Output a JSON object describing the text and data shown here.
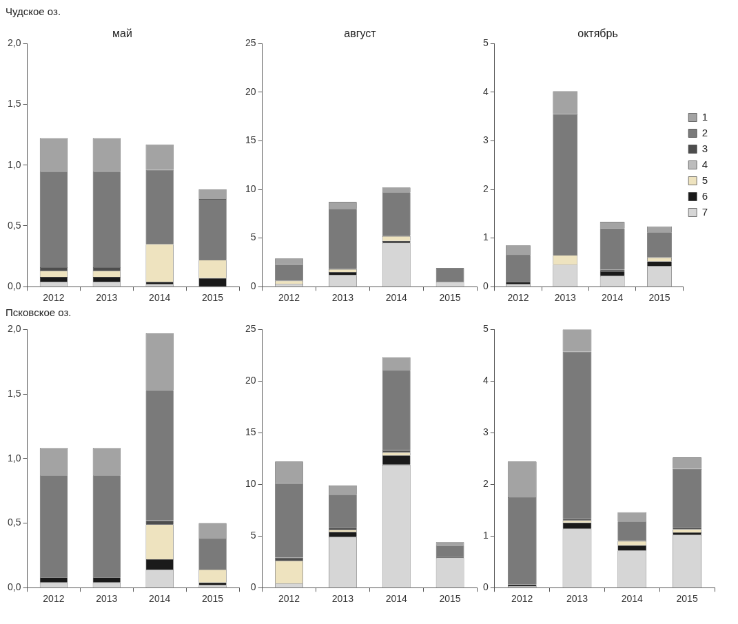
{
  "chart_data": [
    {
      "type": "bar",
      "title": "май",
      "annotations": [
        "Чудское оз."
      ],
      "categories": [
        "2012",
        "2013",
        "2014",
        "2015"
      ],
      "stacked": true,
      "grid": false,
      "legend": false,
      "ylim": [
        0,
        2
      ],
      "yticks": [
        {
          "value": 0,
          "label": "0,0"
        },
        {
          "value": 0.5,
          "label": "0,5"
        },
        {
          "value": 1,
          "label": "1,0"
        },
        {
          "value": 1.5,
          "label": "1,5"
        },
        {
          "value": 2,
          "label": "2,0"
        }
      ],
      "series": [
        {
          "color": "#d6d6d6",
          "values": [
            0.04,
            0.04,
            0.02,
            0
          ]
        },
        {
          "color": "#1a1a1a",
          "values": [
            0.04,
            0.04,
            0.02,
            0.07
          ]
        },
        {
          "color": "#eee3bf",
          "values": [
            0.05,
            0.05,
            0.31,
            0.15
          ]
        },
        {
          "color": "#bcbcbc",
          "values": [
            0,
            0,
            0,
            0
          ]
        },
        {
          "color": "#4d4d4d",
          "values": [
            0.03,
            0.03,
            0,
            0
          ]
        },
        {
          "color": "#7a7a7a",
          "values": [
            0.79,
            0.79,
            0.61,
            0.5
          ]
        },
        {
          "color": "#a3a3a3",
          "values": [
            0.27,
            0.27,
            0.21,
            0.08
          ]
        }
      ]
    },
    {
      "type": "bar",
      "title": "август",
      "categories": [
        "2012",
        "2013",
        "2014",
        "2015"
      ],
      "stacked": true,
      "grid": false,
      "legend": false,
      "ylim": [
        0,
        25
      ],
      "yticks": [
        0,
        5,
        10,
        15,
        20,
        25
      ],
      "series": [
        {
          "color": "#d6d6d6",
          "values": [
            0.3,
            1.2,
            4.5,
            0.5
          ]
        },
        {
          "color": "#1a1a1a",
          "values": [
            0,
            0.3,
            0.2,
            0
          ]
        },
        {
          "color": "#eee3bf",
          "values": [
            0.3,
            0.3,
            0.5,
            0
          ]
        },
        {
          "color": "#bcbcbc",
          "values": [
            0,
            0,
            0,
            0
          ]
        },
        {
          "color": "#4d4d4d",
          "values": [
            0,
            0,
            0.1,
            0
          ]
        },
        {
          "color": "#7a7a7a",
          "values": [
            1.7,
            6.2,
            4.4,
            1.4
          ]
        },
        {
          "color": "#a3a3a3",
          "values": [
            0.6,
            0.7,
            0.5,
            0
          ]
        }
      ]
    },
    {
      "type": "bar",
      "title": "октябрь",
      "categories": [
        "2012",
        "2013",
        "2014",
        "2015"
      ],
      "stacked": true,
      "grid": false,
      "legend": "right",
      "ylim": [
        0,
        5
      ],
      "yticks": [
        0,
        1,
        2,
        3,
        4,
        5
      ],
      "series": [
        {
          "name": "7",
          "color": "#d6d6d6",
          "values": [
            0.05,
            0.45,
            0.22,
            0.42
          ]
        },
        {
          "name": "6",
          "color": "#1a1a1a",
          "values": [
            0.05,
            0,
            0.1,
            0.1
          ]
        },
        {
          "name": "5",
          "color": "#eee3bf",
          "values": [
            0,
            0.2,
            0,
            0.08
          ]
        },
        {
          "name": "4",
          "color": "#bcbcbc",
          "values": [
            0,
            0,
            0,
            0
          ]
        },
        {
          "name": "3",
          "color": "#4d4d4d",
          "values": [
            0,
            0,
            0.03,
            0
          ]
        },
        {
          "name": "2",
          "color": "#7a7a7a",
          "values": [
            0.55,
            2.9,
            0.85,
            0.52
          ]
        },
        {
          "name": "1",
          "color": "#a3a3a3",
          "values": [
            0.2,
            0.47,
            0.13,
            0.12
          ]
        }
      ]
    },
    {
      "type": "bar",
      "annotations": [
        "Псковское оз."
      ],
      "categories": [
        "2012",
        "2013",
        "2014",
        "2015"
      ],
      "stacked": true,
      "grid": false,
      "legend": false,
      "ylim": [
        0,
        2
      ],
      "yticks": [
        {
          "value": 0,
          "label": "0,0"
        },
        {
          "value": 0.5,
          "label": "0,5"
        },
        {
          "value": 1,
          "label": "1,0"
        },
        {
          "value": 1.5,
          "label": "1,5"
        },
        {
          "value": 2,
          "label": "2,0"
        }
      ],
      "series": [
        {
          "color": "#d6d6d6",
          "values": [
            0.04,
            0.04,
            0.14,
            0.02
          ]
        },
        {
          "color": "#1a1a1a",
          "values": [
            0.04,
            0.04,
            0.08,
            0.02
          ]
        },
        {
          "color": "#eee3bf",
          "values": [
            0,
            0,
            0.27,
            0.1
          ]
        },
        {
          "color": "#bcbcbc",
          "values": [
            0,
            0,
            0,
            0
          ]
        },
        {
          "color": "#4d4d4d",
          "values": [
            0,
            0,
            0.03,
            0
          ]
        },
        {
          "color": "#7a7a7a",
          "values": [
            0.79,
            0.79,
            1.01,
            0.24
          ]
        },
        {
          "color": "#a3a3a3",
          "values": [
            0.21,
            0.21,
            0.44,
            0.12
          ]
        }
      ]
    },
    {
      "type": "bar",
      "categories": [
        "2012",
        "2013",
        "2014",
        "2015"
      ],
      "stacked": true,
      "grid": false,
      "legend": false,
      "ylim": [
        0,
        25
      ],
      "yticks": [
        0,
        5,
        10,
        15,
        20,
        25
      ],
      "series": [
        {
          "color": "#d6d6d6",
          "values": [
            0.4,
            4.9,
            11.9,
            2.9
          ]
        },
        {
          "color": "#1a1a1a",
          "values": [
            0,
            0.5,
            0.9,
            0.1
          ]
        },
        {
          "color": "#eee3bf",
          "values": [
            2.2,
            0.2,
            0.3,
            0
          ]
        },
        {
          "color": "#bcbcbc",
          "values": [
            0,
            0,
            0,
            0
          ]
        },
        {
          "color": "#4d4d4d",
          "values": [
            0.3,
            0.2,
            0.2,
            0
          ]
        },
        {
          "color": "#7a7a7a",
          "values": [
            7.2,
            3.2,
            7.7,
            1.1
          ]
        },
        {
          "color": "#a3a3a3",
          "values": [
            2.1,
            0.9,
            1.3,
            0.3
          ]
        }
      ]
    },
    {
      "type": "bar",
      "categories": [
        "2012",
        "2013",
        "2014",
        "2015"
      ],
      "stacked": true,
      "grid": false,
      "legend": false,
      "ylim": [
        0,
        5
      ],
      "yticks": [
        0,
        1,
        2,
        3,
        4,
        5
      ],
      "series": [
        {
          "color": "#d6d6d6",
          "values": [
            0.03,
            1.14,
            0.72,
            1.02
          ]
        },
        {
          "color": "#1a1a1a",
          "values": [
            0.03,
            0.12,
            0.1,
            0.05
          ]
        },
        {
          "color": "#eee3bf",
          "values": [
            0,
            0.04,
            0.08,
            0.06
          ]
        },
        {
          "color": "#bcbcbc",
          "values": [
            0,
            0,
            0,
            0
          ]
        },
        {
          "color": "#4d4d4d",
          "values": [
            0,
            0.03,
            0.02,
            0.03
          ]
        },
        {
          "color": "#7a7a7a",
          "values": [
            1.69,
            3.24,
            0.36,
            1.14
          ]
        },
        {
          "color": "#a3a3a3",
          "values": [
            0.69,
            0.43,
            0.18,
            0.22
          ]
        }
      ]
    }
  ]
}
